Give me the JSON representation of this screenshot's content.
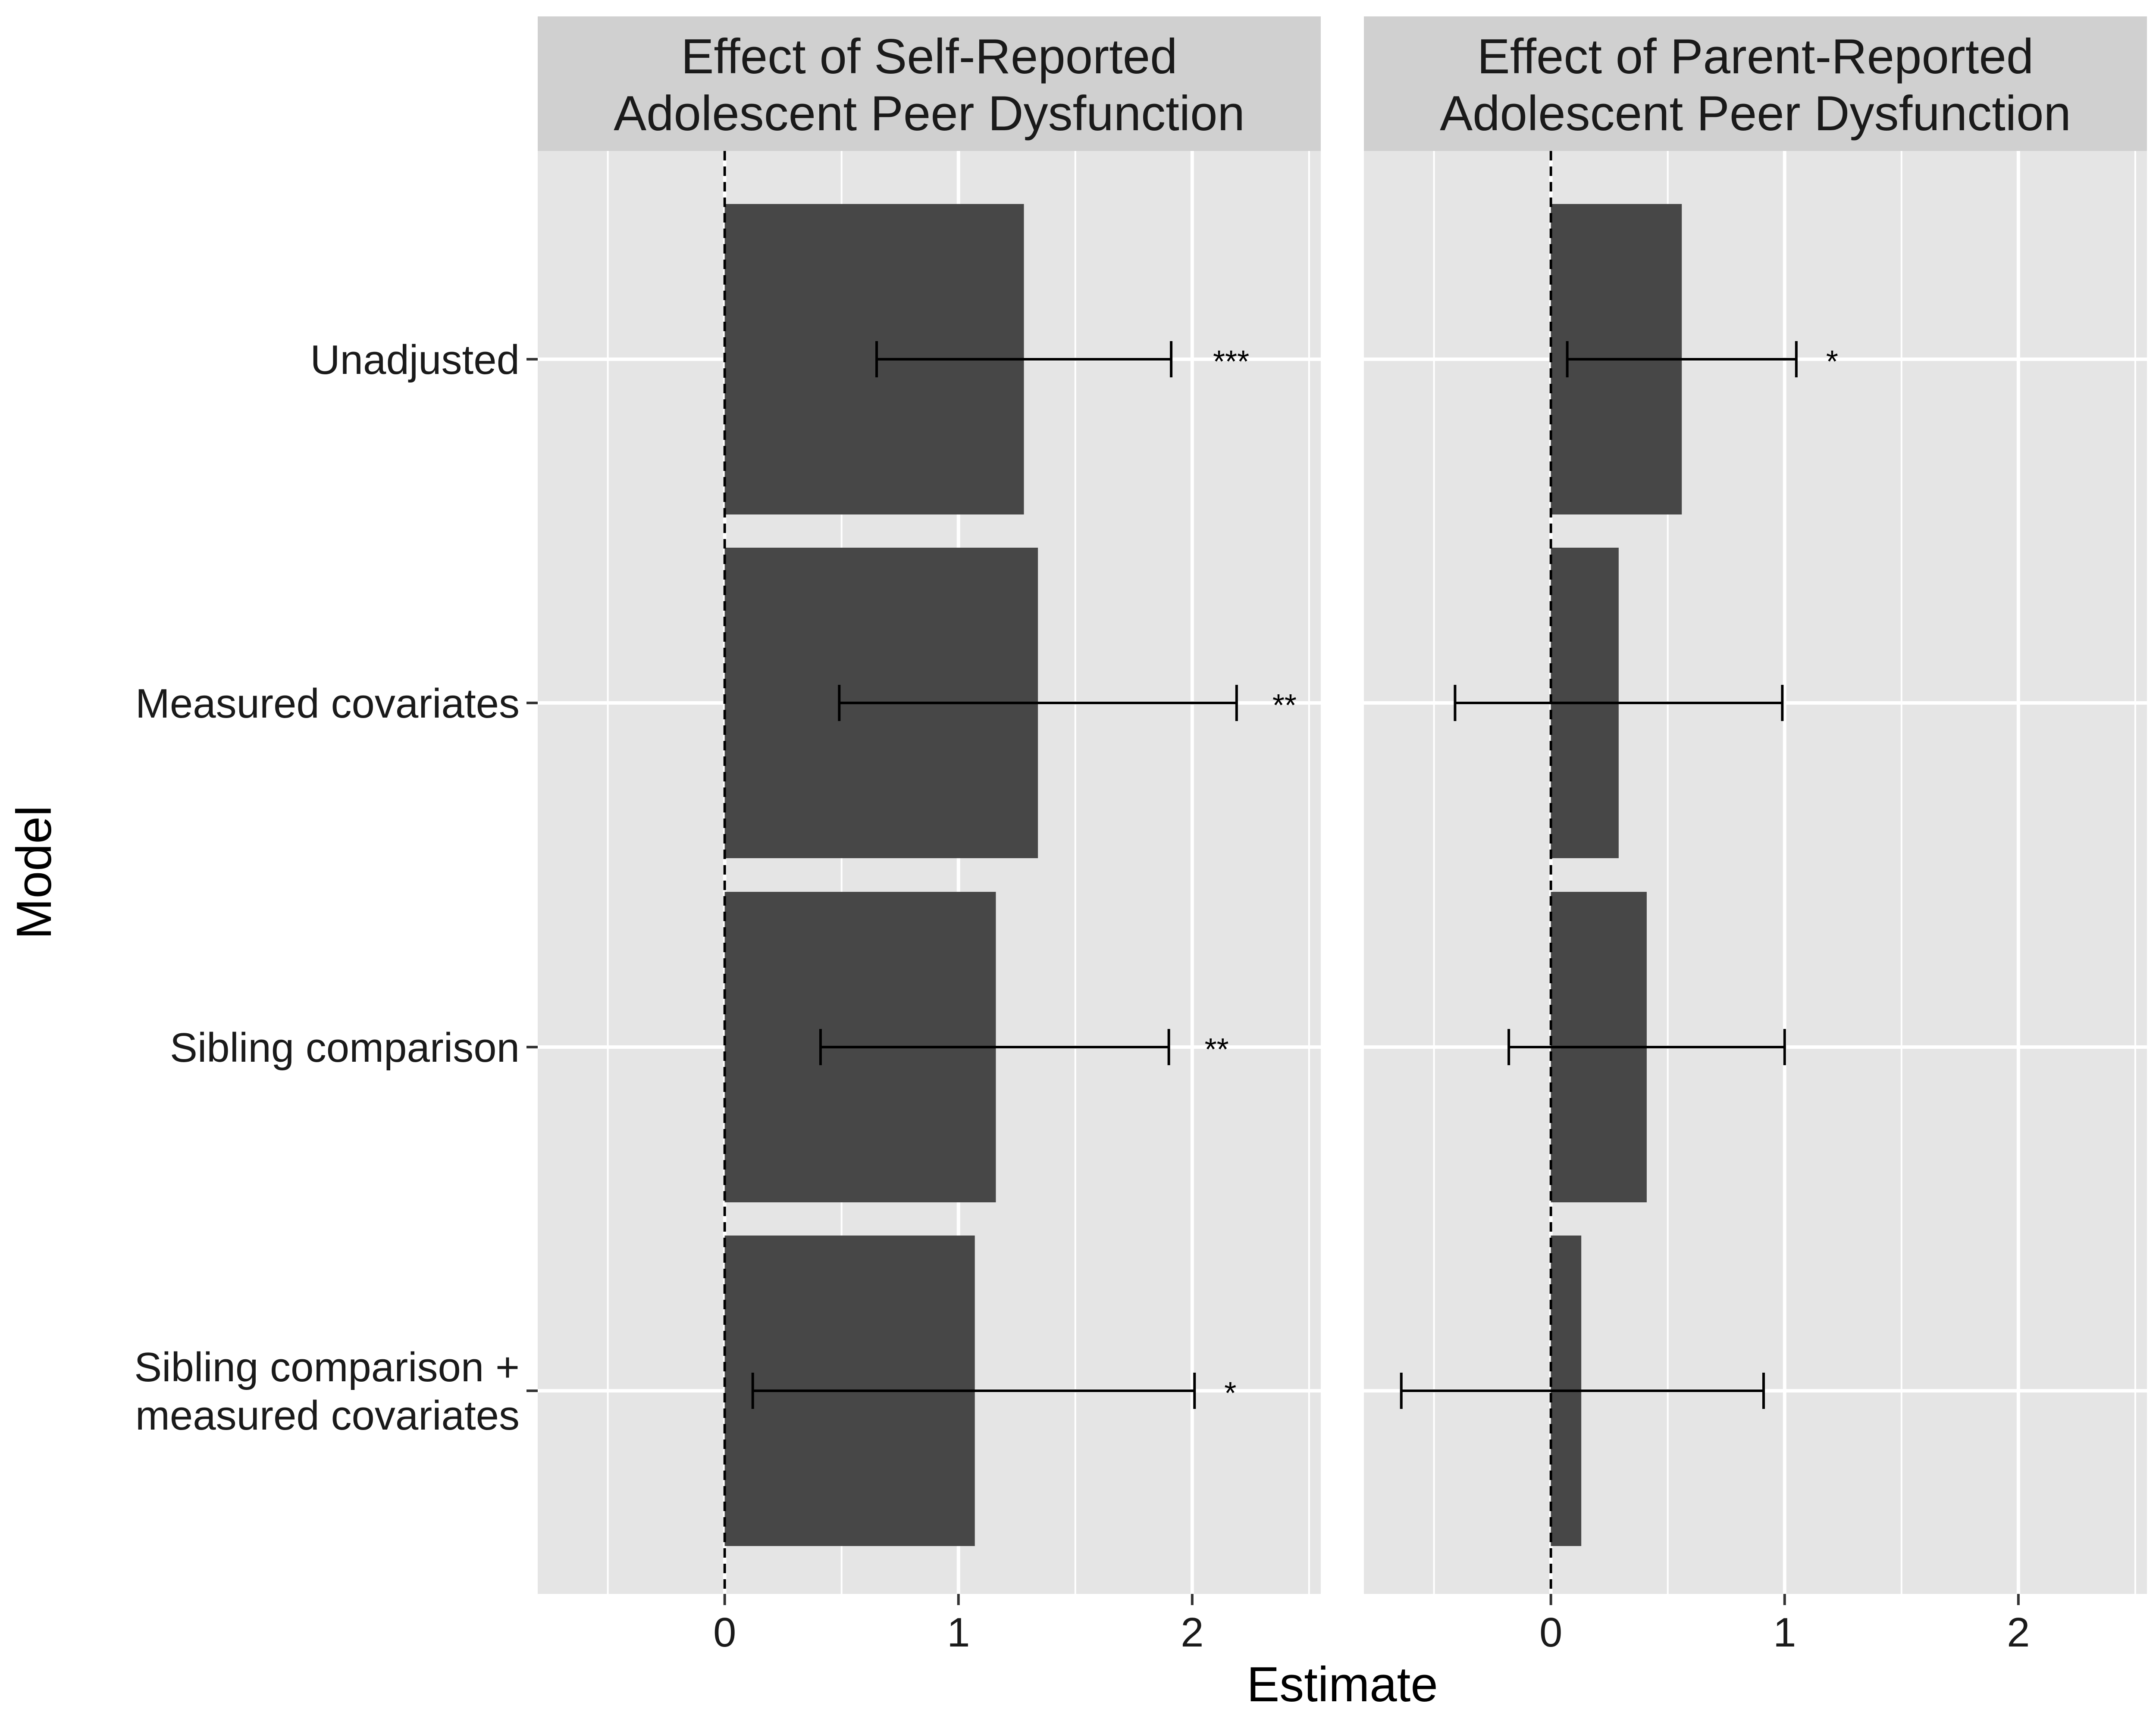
{
  "chart_data": {
    "type": "bar",
    "orientation": "horizontal",
    "xlabel": "Estimate",
    "ylabel": "Model",
    "xlim": [
      -0.8,
      2.55
    ],
    "x_ticks": [
      0,
      1,
      2
    ],
    "x_tick_labels": [
      "0",
      "1",
      "2"
    ],
    "reference_line": {
      "x": 0,
      "style": "dashed"
    },
    "grid": true,
    "categories": [
      "Unadjusted",
      "Measured covariates",
      "Sibling comparison",
      "Sibling comparison +\nmeasured covariates"
    ],
    "panels": [
      {
        "title": "Effect of Self-Reported\nAdolescent Peer Dysfunction",
        "values": [
          1.28,
          1.34,
          1.16,
          1.07
        ],
        "ci_low": [
          0.65,
          0.49,
          0.41,
          0.12
        ],
        "ci_high": [
          1.91,
          2.19,
          1.9,
          2.01
        ],
        "significance": [
          "***",
          "**",
          "**",
          "*"
        ]
      },
      {
        "title": "Effect of Parent-Reported\nAdolescent Peer Dysfunction",
        "values": [
          0.56,
          0.29,
          0.41,
          0.13
        ],
        "ci_low": [
          0.07,
          -0.41,
          -0.18,
          -0.64
        ],
        "ci_high": [
          1.05,
          0.99,
          1.0,
          0.91
        ],
        "significance": [
          "*",
          "",
          "",
          ""
        ]
      }
    ]
  },
  "colors": {
    "panel_background": "#e5e5e5",
    "strip_background": "#d0d0d0",
    "grid_line": "#ffffff",
    "bar_fill": "#474747",
    "error_bar": "#000000",
    "axis_text": "#1a1a1a"
  }
}
